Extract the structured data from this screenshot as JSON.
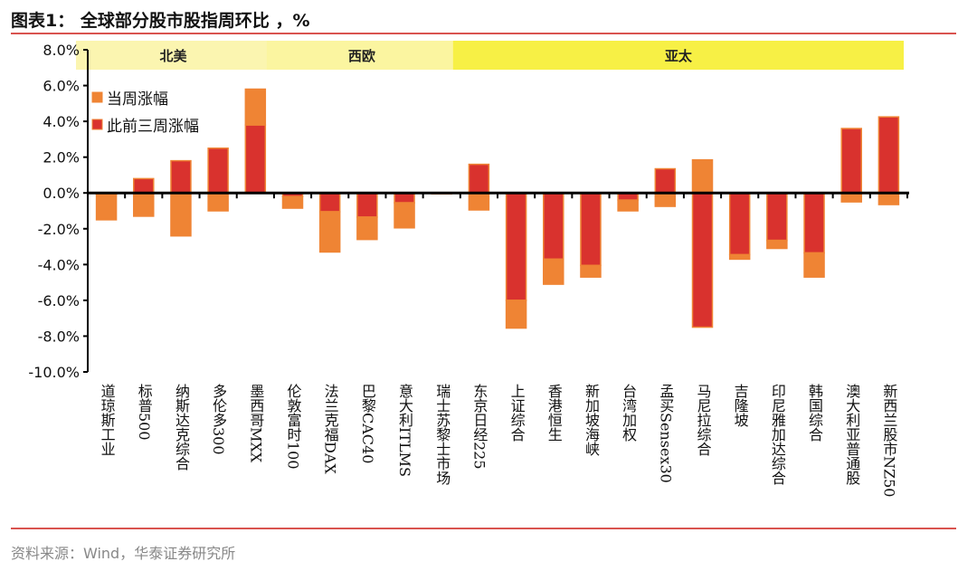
{
  "title": "图表1： 全球部分股市股指周环比 ，%",
  "source": "资料来源：Wind，华泰证券研究所",
  "chart_data": {
    "type": "bar",
    "stacked": true,
    "title": "图表1： 全球部分股市股指周环比 ，%",
    "xlabel": "",
    "ylabel": "",
    "ylim": [
      -10,
      8
    ],
    "yticks": [
      "-10.0%",
      "-8.0%",
      "-6.0%",
      "-4.0%",
      "-2.0%",
      "0.0%",
      "2.0%",
      "4.0%",
      "6.0%",
      "8.0%"
    ],
    "grid": false,
    "legend_position": "top-left",
    "regions": [
      {
        "label": "北美",
        "start": 0,
        "end": 4,
        "color": "#fbf5b0"
      },
      {
        "label": "西欧",
        "start": 5,
        "end": 9,
        "color": "#fbf5a0"
      },
      {
        "label": "亚太",
        "start": 10,
        "end": 21,
        "color": "#f7f045"
      }
    ],
    "categories": [
      "道琼斯工业",
      "标普500",
      "纳斯达克综合",
      "多伦多300",
      "墨西哥MXX",
      "伦敦富时100",
      "法兰克福DAX",
      "巴黎CAC40",
      "意大利ITLMS",
      "瑞士苏黎士市场",
      "东京日经225",
      "上证综合",
      "香港恒生",
      "新加坡海峡",
      "台湾加权",
      "孟买Sensex30",
      "马尼拉综合",
      "吉隆坡",
      "印尼雅加达综合",
      "韩国综合",
      "澳大利亚普通股",
      "新西兰股市NZ50"
    ],
    "series": [
      {
        "name": "此前三周涨幅",
        "color": "#d9322e",
        "values": [
          -0.1,
          0.8,
          1.8,
          2.5,
          3.8,
          -0.2,
          -1.05,
          -1.35,
          -0.55,
          -0.05,
          1.6,
          -6.0,
          -3.7,
          -4.05,
          -0.4,
          1.35,
          -7.5,
          -3.45,
          -2.65,
          -3.35,
          3.6,
          4.25
        ]
      },
      {
        "name": "当周涨幅",
        "color": "#ef8434",
        "values": [
          -1.4,
          -1.3,
          -2.4,
          -1.0,
          2.0,
          -0.65,
          -2.25,
          -1.25,
          -1.4,
          0.0,
          -0.95,
          -1.55,
          -1.4,
          -0.65,
          -0.6,
          -0.75,
          1.85,
          -0.25,
          -0.45,
          -1.35,
          -0.5,
          -0.65
        ]
      }
    ]
  }
}
